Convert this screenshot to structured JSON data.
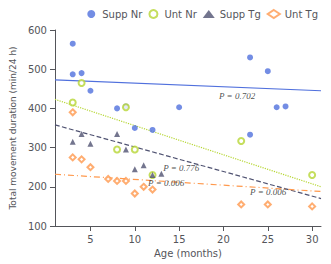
{
  "chart_data": {
    "type": "scatter",
    "xlabel": "Age (months)",
    "ylabel": "Total movement duration (min/24 h)",
    "xlim": [
      1,
      31
    ],
    "ylim": [
      100,
      600
    ],
    "xticks": [
      5,
      10,
      15,
      20,
      25,
      30
    ],
    "yticks": [
      100,
      200,
      300,
      400,
      500,
      600
    ],
    "grid": false,
    "legend": "upper right",
    "series": [
      {
        "name": "Supp Nr",
        "marker": "circle",
        "line_style": "solid",
        "x": [
          3,
          3,
          4,
          5,
          8,
          9,
          10,
          12,
          15,
          23,
          23,
          25,
          26,
          27
        ],
        "values": [
          565,
          487,
          490,
          445,
          400,
          405,
          350,
          345,
          403,
          530,
          333,
          495,
          403,
          405
        ],
        "trend_x": [
          1,
          31
        ],
        "trend_values": [
          473,
          445
        ]
      },
      {
        "name": "Unt Nr",
        "marker": "open circle",
        "line_style": "dotted",
        "x": [
          3,
          4,
          8,
          9,
          10,
          12,
          22,
          30
        ],
        "values": [
          415,
          465,
          295,
          403,
          295,
          230,
          317,
          230
        ],
        "trend_x": [
          1,
          31
        ],
        "trend_values": [
          423,
          200
        ]
      },
      {
        "name": "Supp Tg",
        "marker": "triangle",
        "line_style": "dashed",
        "x": [
          3,
          4,
          5,
          8,
          9,
          10,
          11,
          12,
          13
        ],
        "values": [
          315,
          335,
          310,
          335,
          295,
          245,
          255,
          230,
          233
        ],
        "trend_x": [
          1,
          31
        ],
        "trend_values": [
          358,
          170
        ]
      },
      {
        "name": "Unt Tg",
        "marker": "open diamond",
        "line_style": "dashdot",
        "x": [
          3,
          3,
          4,
          5,
          7,
          8,
          9,
          10,
          11,
          12,
          22,
          25,
          30
        ],
        "values": [
          275,
          390,
          270,
          250,
          220,
          215,
          215,
          183,
          200,
          193,
          155,
          155,
          150
        ],
        "trend_x": [
          1,
          31
        ],
        "trend_values": [
          232,
          188
        ]
      }
    ],
    "annotations": [
      {
        "text": "P = 0.702",
        "x": 19.5,
        "y": 432
      },
      {
        "text": "P = 0.006",
        "x": 23.0,
        "y": 188
      },
      {
        "text": "P = 0.776",
        "x": 13.2,
        "y": 248
      },
      {
        "text": "P = 0.006",
        "x": 11.5,
        "y": 210
      }
    ]
  }
}
